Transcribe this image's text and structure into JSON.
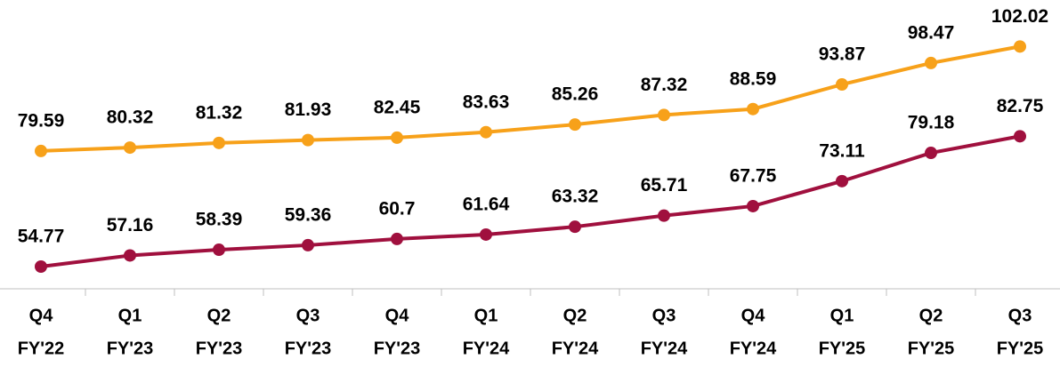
{
  "chart_data": {
    "type": "line",
    "categories": [
      [
        "Q4",
        "FY'22"
      ],
      [
        "Q1",
        "FY'23"
      ],
      [
        "Q2",
        "FY'23"
      ],
      [
        "Q3",
        "FY'23"
      ],
      [
        "Q4",
        "FY'23"
      ],
      [
        "Q1",
        "FY'24"
      ],
      [
        "Q2",
        "FY'24"
      ],
      [
        "Q3",
        "FY'24"
      ],
      [
        "Q4",
        "FY'24"
      ],
      [
        "Q1",
        "FY'25"
      ],
      [
        "Q2",
        "FY'25"
      ],
      [
        "Q3",
        "FY'25"
      ]
    ],
    "series": [
      {
        "color": "#f7a11a",
        "values": [
          79.59,
          80.32,
          81.32,
          81.93,
          82.45,
          83.63,
          85.26,
          87.32,
          88.59,
          93.87,
          98.47,
          102.02
        ]
      },
      {
        "color": "#a0103e",
        "values": [
          54.77,
          57.16,
          58.39,
          59.36,
          60.7,
          61.64,
          63.32,
          65.71,
          67.75,
          73.11,
          79.18,
          82.75
        ]
      }
    ],
    "ylim": [
      50,
      112
    ]
  }
}
